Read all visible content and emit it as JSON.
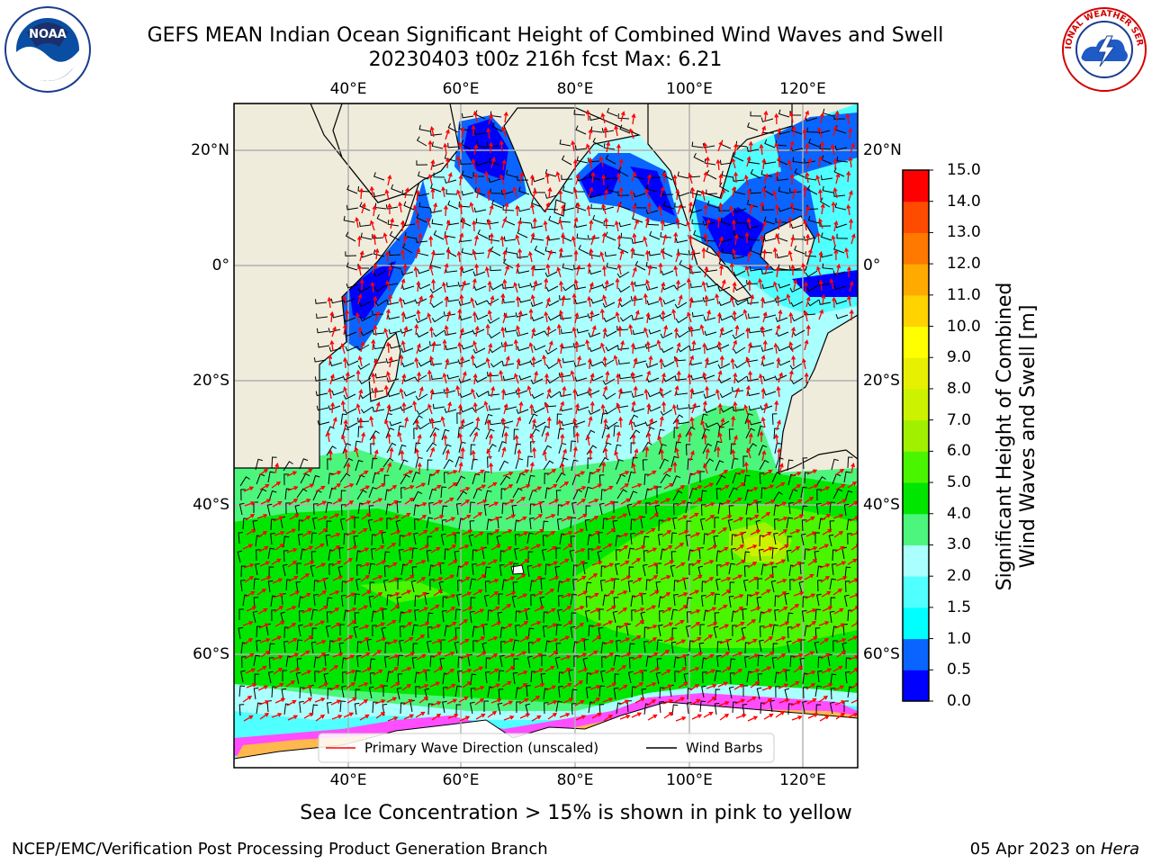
{
  "title": {
    "line1": "GEFS MEAN Indian Ocean Significant Height of Combined Wind Waves and Swell",
    "line2": "20230403 t00z 216h fcst   Max: 6.21"
  },
  "logos": {
    "left": {
      "name": "noaa-logo",
      "text": "NOAA"
    },
    "right": {
      "name": "national-weather-service-logo",
      "text": "NATIONAL WEATHER SERVICE"
    }
  },
  "map": {
    "lon_labels": [
      "40°E",
      "60°E",
      "80°E",
      "100°E",
      "120°E"
    ],
    "lat_labels": [
      "20°N",
      "0°",
      "20°S",
      "40°S",
      "60°S"
    ],
    "legend": {
      "wave_label": "Primary Wave Direction (unscaled)",
      "wind_label": "Wind Barbs",
      "wave_color": "#ff0000",
      "wind_color": "#000000"
    },
    "colors": {
      "land": "#efecdc",
      "grid": "#b0b0b0"
    }
  },
  "colorbar": {
    "title_line1": "Significant Height of Combined",
    "title_line2": "Wind Waves and Swell [m]",
    "ticks": [
      "0.0",
      "0.5",
      "1.0",
      "1.5",
      "2.0",
      "3.0",
      "4.0",
      "5.0",
      "6.0",
      "7.0",
      "8.0",
      "9.0",
      "10.0",
      "11.0",
      "12.0",
      "13.0",
      "14.0",
      "15.0"
    ],
    "colors": [
      "#0000ff",
      "#0a64ff",
      "#00ffff",
      "#50ffff",
      "#aaffff",
      "#4cf57c",
      "#00e600",
      "#4af500",
      "#a0f000",
      "#cdf200",
      "#e6f000",
      "#ffff00",
      "#ffd200",
      "#ffaa00",
      "#ff7800",
      "#ff4b00",
      "#ff0000"
    ]
  },
  "note": "Sea Ice Concentration > 15% is shown in pink to yellow",
  "footer": {
    "left": "NCEP/EMC/Verification Post Processing Product Generation Branch",
    "right_date": "05 Apr 2023 on ",
    "right_host": "Hera"
  }
}
